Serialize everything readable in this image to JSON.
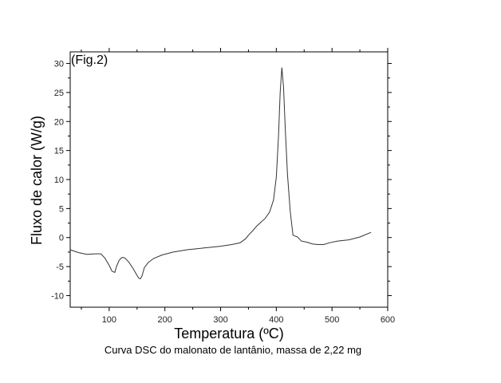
{
  "chart_data": {
    "type": "line",
    "panel_label": "(Fig.2)",
    "xlabel": "Temperatura (ºC)",
    "ylabel": "Fluxo de calor (W/g)",
    "caption": "Curva DSC do malonato de lantânio, massa de 2,22 mg",
    "xlim": [
      30,
      600
    ],
    "ylim": [
      -12,
      32
    ],
    "x_ticks": [
      100,
      200,
      300,
      400,
      500,
      600
    ],
    "y_ticks": [
      -10,
      -5,
      0,
      5,
      10,
      15,
      20,
      25,
      30
    ],
    "grid": false,
    "line_color": "#333333",
    "series": [
      {
        "x": [
          30,
          45,
          60,
          75,
          85,
          92,
          100,
          105,
          110,
          113,
          118,
          123,
          128,
          135,
          142,
          148,
          153,
          156,
          159,
          163,
          170,
          180,
          195,
          215,
          240,
          270,
          300,
          320,
          335,
          345,
          350,
          358,
          365,
          372,
          380,
          388,
          395,
          400,
          404,
          407,
          410,
          413,
          416,
          420,
          425,
          430,
          438,
          445,
          455,
          465,
          475,
          485,
          495,
          510,
          530,
          550,
          570
        ],
        "y": [
          -2.1,
          -2.6,
          -2.9,
          -2.8,
          -2.8,
          -3.5,
          -4.8,
          -5.8,
          -6.0,
          -5.0,
          -3.9,
          -3.4,
          -3.5,
          -4.2,
          -5.2,
          -6.2,
          -7.0,
          -7.1,
          -6.6,
          -5.2,
          -4.3,
          -3.6,
          -3.0,
          -2.5,
          -2.1,
          -1.8,
          -1.5,
          -1.2,
          -0.9,
          -0.2,
          0.4,
          1.2,
          2.0,
          2.6,
          3.3,
          4.4,
          6.5,
          10.5,
          17.5,
          25.0,
          29.3,
          26.0,
          19.0,
          11.0,
          4.5,
          0.4,
          0.1,
          -0.6,
          -0.8,
          -1.1,
          -1.2,
          -1.2,
          -0.9,
          -0.6,
          -0.4,
          0.1,
          0.9
        ]
      }
    ]
  }
}
